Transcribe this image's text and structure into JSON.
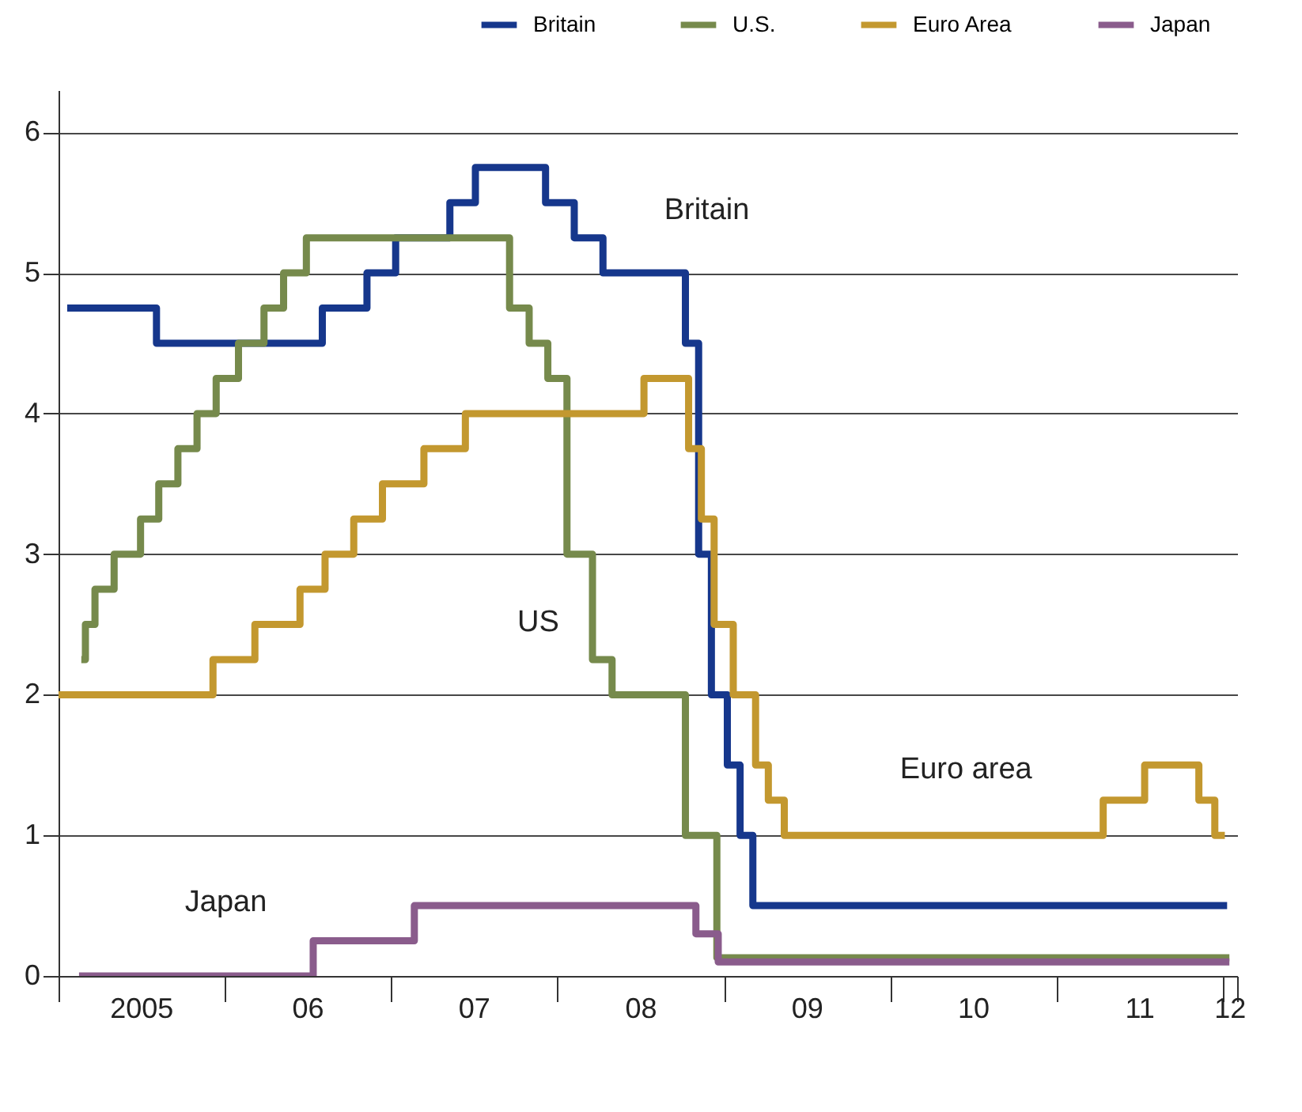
{
  "chart_data": {
    "type": "step",
    "xlim": [
      "2005-01-01",
      "2012-02-01"
    ],
    "xticks": [
      {
        "value": "2005-01-01",
        "label": null
      },
      {
        "value": "2005-07-01",
        "label": "2005"
      },
      {
        "value": "2006-01-01",
        "label": null
      },
      {
        "value": "2006-07-01",
        "label": "06"
      },
      {
        "value": "2007-01-01",
        "label": null
      },
      {
        "value": "2007-07-01",
        "label": "07"
      },
      {
        "value": "2008-01-01",
        "label": null
      },
      {
        "value": "2008-07-01",
        "label": "08"
      },
      {
        "value": "2009-01-01",
        "label": null
      },
      {
        "value": "2009-07-01",
        "label": "09"
      },
      {
        "value": "2010-01-01",
        "label": null
      },
      {
        "value": "2010-07-01",
        "label": "10"
      },
      {
        "value": "2011-01-01",
        "label": null
      },
      {
        "value": "2011-07-01",
        "label": "11"
      },
      {
        "value": "2012-01-01",
        "label": null
      },
      {
        "value": "2012-01-15",
        "label": "12"
      },
      {
        "value": "2012-02-01",
        "label": null
      }
    ],
    "ylim": [
      0,
      6.3
    ],
    "yticks": [
      0,
      1,
      2,
      3,
      4,
      5,
      6
    ],
    "grid": "y",
    "legend": "top right",
    "line_style": "solid",
    "series": [
      {
        "name": "Britain",
        "color": "#16378c",
        "x": [
          "2005-01-20",
          "2005-08-04",
          "2006-08-03",
          "2006-11-09",
          "2007-01-11",
          "2007-05-10",
          "2007-07-05",
          "2007-12-06",
          "2008-02-07",
          "2008-04-10",
          "2008-10-08",
          "2008-11-06",
          "2008-12-04",
          "2009-01-08",
          "2009-02-05",
          "2009-03-05",
          "2012-01-10"
        ],
        "values": [
          4.75,
          4.5,
          4.75,
          5.0,
          5.25,
          5.5,
          5.75,
          5.5,
          5.25,
          5.0,
          4.5,
          3.0,
          2.0,
          1.5,
          1.0,
          0.5,
          0.5
        ]
      },
      {
        "name": "U.S.",
        "color": "#768a4c",
        "x": [
          "2005-02-20",
          "2005-03-01",
          "2005-03-22",
          "2005-05-03",
          "2005-06-30",
          "2005-08-09",
          "2005-09-20",
          "2005-11-01",
          "2005-12-13",
          "2006-01-31",
          "2006-03-28",
          "2006-05-10",
          "2006-06-29",
          "2007-09-18",
          "2007-10-31",
          "2007-12-11",
          "2008-01-22",
          "2008-03-18",
          "2008-04-30",
          "2008-10-08",
          "2008-12-16",
          "2012-01-15"
        ],
        "values": [
          2.25,
          2.5,
          2.75,
          3.0,
          3.25,
          3.5,
          3.75,
          4.0,
          4.25,
          4.5,
          4.75,
          5.0,
          5.25,
          4.75,
          4.5,
          4.25,
          3.0,
          2.25,
          2.0,
          1.0,
          0.13,
          0.13
        ]
      },
      {
        "name": "Euro Area",
        "color": "#c3982f",
        "x": [
          "2005-01-01",
          "2005-12-06",
          "2006-03-08",
          "2006-06-15",
          "2006-08-09",
          "2006-10-11",
          "2006-12-13",
          "2007-03-14",
          "2007-06-13",
          "2008-07-09",
          "2008-10-15",
          "2008-11-12",
          "2008-12-10",
          "2009-01-21",
          "2009-03-11",
          "2009-04-08",
          "2009-05-13",
          "2011-04-13",
          "2011-07-13",
          "2011-11-09",
          "2011-12-14",
          "2012-01-05"
        ],
        "values": [
          2.0,
          2.25,
          2.5,
          2.75,
          3.0,
          3.25,
          3.5,
          3.75,
          4.0,
          4.25,
          3.75,
          3.25,
          2.5,
          2.0,
          1.5,
          1.25,
          1.0,
          1.25,
          1.5,
          1.25,
          1.0,
          1.0
        ]
      },
      {
        "name": "Japan",
        "color": "#8a5c8c",
        "x": [
          "2005-02-15",
          "2006-07-14",
          "2007-02-21",
          "2008-10-31",
          "2008-12-19",
          "2012-01-15"
        ],
        "values": [
          0,
          0.25,
          0.5,
          0.3,
          0.1,
          0.1
        ]
      }
    ],
    "annotations": [
      "Britain",
      "US",
      "Euro area",
      "Japan"
    ]
  }
}
